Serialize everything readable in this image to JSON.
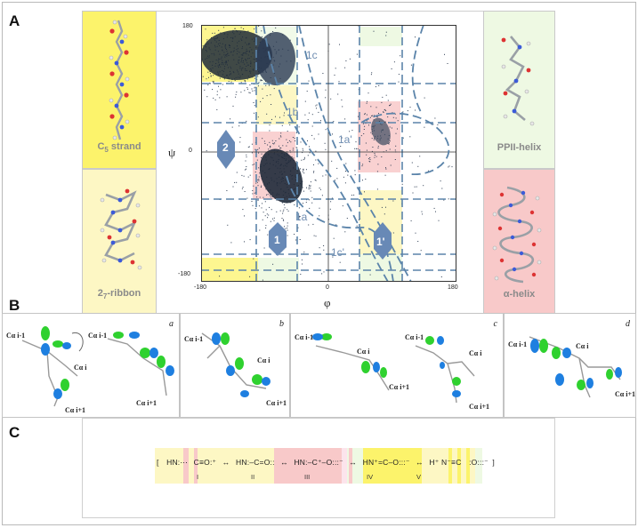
{
  "panel_letters": {
    "a": "A",
    "b": "B",
    "c": "C"
  },
  "panel_a": {
    "left_top_label": "C5 strand",
    "left_top_label_main": "C",
    "left_top_label_sub": "5",
    "left_top_label_rest": " strand",
    "left_bottom_label_main": "2",
    "left_bottom_label_sub": "7",
    "left_bottom_label_rest": "-ribbon",
    "right_top_label": "PPII-helix",
    "right_bottom_label": "α-helix",
    "colors": {
      "c5_yellow": "#fcf36b",
      "ribbon_yellow": "#fdf7c4",
      "ppii_green": "#eef9e3",
      "alpha_pink": "#f8c9c9",
      "arrow_blue": "#6889b6",
      "curve_blue": "#5b84aa"
    },
    "ramachandran": {
      "xlabel": "φ",
      "ylabel": "ψ",
      "x_ticks": [
        "-180",
        "0",
        "180"
      ],
      "y_ticks": [
        "180",
        "0",
        "-180"
      ],
      "xlim": [
        -180,
        180
      ],
      "ylim": [
        -180,
        180
      ],
      "curve_labels": [
        "1c",
        "1b",
        "1a'",
        "1a",
        "1c'"
      ],
      "arrow_labels": [
        "2",
        "1",
        "1'"
      ]
    }
  },
  "panel_b": {
    "tags": [
      "a",
      "b",
      "c",
      "d"
    ],
    "calpha_labels": {
      "a": [
        "Cα i-1",
        "Cα i-1",
        "Cα i",
        "Cα i+1",
        "Cα i+1"
      ],
      "b": [
        "Cα i-1",
        "Cα i",
        "Cα i+1"
      ],
      "c": [
        "Cα i-1",
        "Cα i-1",
        "Cα i",
        "Cα i",
        "Cα i+1",
        "Cα i+1"
      ],
      "d": [
        "Cα i-1",
        "Cα i",
        "Cα i+1"
      ]
    }
  },
  "panel_c": {
    "bracket_open": "[",
    "bracket_close": "]",
    "terms": [
      "HN:⋯",
      "C≡O:⁺",
      "↔",
      "HN:–C=O::",
      "↔",
      "HN:–C⁺–O:::⁻",
      "↔",
      "HN⁺=C–O:::⁻",
      "↔",
      "H⁺ N⁻≡C",
      ":O:::⁻"
    ],
    "romans": [
      "I",
      "II",
      "III",
      "IV",
      "V"
    ]
  }
}
